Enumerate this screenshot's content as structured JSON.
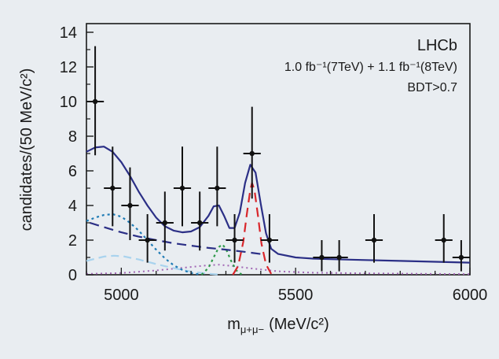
{
  "chart_data": {
    "type": "scatter",
    "xlabel_main": "m",
    "xlabel_sub": "μ+μ−",
    "xlabel_unit": "(MeV/c²)",
    "ylabel": "candidates/(50 MeV/c²)",
    "xlim": [
      4900,
      6000
    ],
    "ylim": [
      0,
      14.5
    ],
    "xticks": [
      5000,
      5500,
      6000
    ],
    "yticks": [
      0,
      2,
      4,
      6,
      8,
      10,
      12,
      14
    ],
    "grid": false,
    "annotations": {
      "experiment": "LHCb",
      "luminosity": "1.0 fb⁻¹(7TeV) + 1.1 fb⁻¹(8TeV)",
      "selection": "BDT>0.7"
    },
    "points": [
      {
        "x": 4925,
        "y": 10,
        "yerr_lo": 3.1,
        "yerr_hi": 3.2,
        "xerr": 25
      },
      {
        "x": 4975,
        "y": 5,
        "yerr_lo": 2.2,
        "yerr_hi": 2.4,
        "xerr": 25
      },
      {
        "x": 5025,
        "y": 4,
        "yerr_lo": 2.0,
        "yerr_hi": 2.2,
        "xerr": 25
      },
      {
        "x": 5075,
        "y": 2,
        "yerr_lo": 1.3,
        "yerr_hi": 1.5,
        "xerr": 25
      },
      {
        "x": 5125,
        "y": 3,
        "yerr_lo": 1.6,
        "yerr_hi": 1.8,
        "xerr": 25
      },
      {
        "x": 5175,
        "y": 5,
        "yerr_lo": 2.2,
        "yerr_hi": 2.4,
        "xerr": 25
      },
      {
        "x": 5225,
        "y": 3,
        "yerr_lo": 1.6,
        "yerr_hi": 1.8,
        "xerr": 25
      },
      {
        "x": 5275,
        "y": 5,
        "yerr_lo": 2.2,
        "yerr_hi": 2.4,
        "xerr": 25
      },
      {
        "x": 5325,
        "y": 2,
        "yerr_lo": 1.3,
        "yerr_hi": 1.5,
        "xerr": 25
      },
      {
        "x": 5375,
        "y": 7,
        "yerr_lo": 2.6,
        "yerr_hi": 2.7,
        "xerr": 25
      },
      {
        "x": 5425,
        "y": 2,
        "yerr_lo": 1.3,
        "yerr_hi": 1.5,
        "xerr": 25
      },
      {
        "x": 5575,
        "y": 1,
        "yerr_lo": 0.8,
        "yerr_hi": 1.0,
        "xerr": 25
      },
      {
        "x": 5625,
        "y": 1,
        "yerr_lo": 0.8,
        "yerr_hi": 1.0,
        "xerr": 25
      },
      {
        "x": 5725,
        "y": 2,
        "yerr_lo": 1.3,
        "yerr_hi": 1.5,
        "xerr": 25
      },
      {
        "x": 5925,
        "y": 2,
        "yerr_lo": 1.3,
        "yerr_hi": 1.5,
        "xerr": 25
      },
      {
        "x": 5975,
        "y": 1,
        "yerr_lo": 0.8,
        "yerr_hi": 1.0,
        "xerr": 25
      }
    ],
    "curves": [
      {
        "id": "total",
        "color": "#2b2f86",
        "dash": "",
        "width": 2.2,
        "points": [
          [
            4900,
            7.1
          ],
          [
            4925,
            7.35
          ],
          [
            4950,
            7.4
          ],
          [
            4975,
            7.1
          ],
          [
            5000,
            6.5
          ],
          [
            5025,
            5.7
          ],
          [
            5050,
            4.8
          ],
          [
            5075,
            4.0
          ],
          [
            5100,
            3.3
          ],
          [
            5125,
            2.8
          ],
          [
            5150,
            2.55
          ],
          [
            5175,
            2.45
          ],
          [
            5200,
            2.5
          ],
          [
            5225,
            2.75
          ],
          [
            5250,
            3.4
          ],
          [
            5265,
            3.95
          ],
          [
            5280,
            4.0
          ],
          [
            5295,
            3.4
          ],
          [
            5310,
            2.7
          ],
          [
            5325,
            2.7
          ],
          [
            5340,
            3.6
          ],
          [
            5355,
            5.3
          ],
          [
            5370,
            6.35
          ],
          [
            5385,
            5.9
          ],
          [
            5400,
            4.1
          ],
          [
            5415,
            2.4
          ],
          [
            5430,
            1.5
          ],
          [
            5450,
            1.2
          ],
          [
            5500,
            1.0
          ],
          [
            5550,
            0.93
          ],
          [
            5600,
            0.9
          ],
          [
            5700,
            0.85
          ],
          [
            5800,
            0.8
          ],
          [
            5900,
            0.75
          ],
          [
            6000,
            0.7
          ]
        ]
      },
      {
        "id": "signal",
        "color": "#d9262b",
        "dash": "12,7",
        "width": 2.2,
        "points": [
          [
            5320,
            0
          ],
          [
            5335,
            0.5
          ],
          [
            5350,
            1.9
          ],
          [
            5360,
            3.5
          ],
          [
            5370,
            4.9
          ],
          [
            5375,
            5.3
          ],
          [
            5382,
            4.9
          ],
          [
            5392,
            3.4
          ],
          [
            5402,
            1.8
          ],
          [
            5415,
            0.6
          ],
          [
            5430,
            0.05
          ]
        ]
      },
      {
        "id": "combinatorial",
        "color": "#2b2f86",
        "dash": "12,7",
        "width": 2.2,
        "points": [
          [
            4910,
            3.0
          ],
          [
            4950,
            2.75
          ],
          [
            5000,
            2.45
          ],
          [
            5050,
            2.2
          ],
          [
            5100,
            2.0
          ],
          [
            5150,
            1.82
          ],
          [
            5200,
            1.68
          ],
          [
            5250,
            1.55
          ],
          [
            5300,
            1.45
          ],
          [
            5350,
            1.33
          ],
          [
            5400,
            1.2
          ]
        ]
      },
      {
        "id": "peaking",
        "color": "#1f7bb5",
        "dash": "3,4",
        "width": 2.2,
        "points": [
          [
            4900,
            3.1
          ],
          [
            4925,
            3.3
          ],
          [
            4950,
            3.45
          ],
          [
            4975,
            3.5
          ],
          [
            5000,
            3.35
          ],
          [
            5025,
            3.0
          ],
          [
            5050,
            2.55
          ],
          [
            5075,
            2.0
          ],
          [
            5100,
            1.45
          ],
          [
            5125,
            0.95
          ],
          [
            5150,
            0.55
          ],
          [
            5175,
            0.28
          ],
          [
            5200,
            0.1
          ],
          [
            5225,
            0.02
          ]
        ]
      },
      {
        "id": "partially-reco",
        "color": "#a9d3ee",
        "dash": "10,6",
        "width": 2.2,
        "points": [
          [
            4900,
            0.8
          ],
          [
            4950,
            1.05
          ],
          [
            4980,
            1.1
          ],
          [
            5010,
            1.05
          ],
          [
            5050,
            0.88
          ],
          [
            5100,
            0.62
          ],
          [
            5150,
            0.38
          ],
          [
            5200,
            0.18
          ],
          [
            5250,
            0.06
          ],
          [
            5280,
            0.01
          ]
        ]
      },
      {
        "id": "bd",
        "color": "#2f9a4b",
        "dash": "3,4",
        "width": 2.2,
        "points": [
          [
            5230,
            0
          ],
          [
            5250,
            0.4
          ],
          [
            5265,
            1.0
          ],
          [
            5280,
            1.6
          ],
          [
            5290,
            1.75
          ],
          [
            5300,
            1.5
          ],
          [
            5315,
            0.8
          ],
          [
            5330,
            0.25
          ],
          [
            5345,
            0.02
          ]
        ]
      },
      {
        "id": "misid",
        "color": "#a268b5",
        "dash": "2,4",
        "width": 2.0,
        "points": [
          [
            4900,
            0.05
          ],
          [
            5000,
            0.1
          ],
          [
            5100,
            0.25
          ],
          [
            5200,
            0.45
          ],
          [
            5250,
            0.55
          ],
          [
            5280,
            0.58
          ],
          [
            5320,
            0.5
          ],
          [
            5380,
            0.35
          ],
          [
            5450,
            0.2
          ],
          [
            5550,
            0.12
          ],
          [
            5700,
            0.08
          ],
          [
            5900,
            0.05
          ],
          [
            6000,
            0.04
          ]
        ]
      }
    ]
  }
}
